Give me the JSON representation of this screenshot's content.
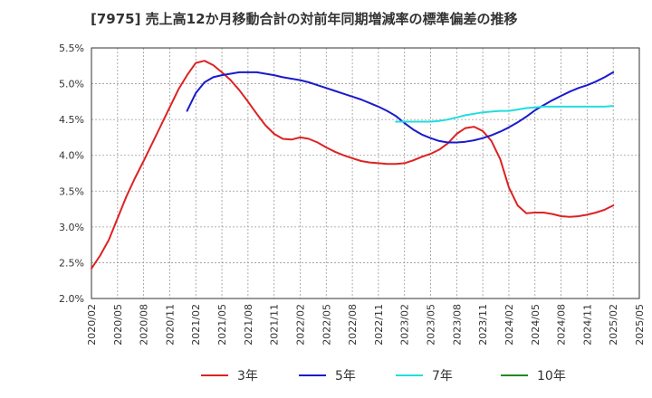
{
  "chart_data": {
    "type": "line",
    "title": "[7975]  売上高12か月移動合計の対前年同期増減率の標準偏差の推移",
    "xlabel": "",
    "ylabel": "",
    "x_ticks": [
      "2020/02",
      "2020/05",
      "2020/08",
      "2020/11",
      "2021/02",
      "2021/05",
      "2021/08",
      "2021/11",
      "2022/02",
      "2022/05",
      "2022/08",
      "2022/11",
      "2023/02",
      "2023/05",
      "2023/08",
      "2023/11",
      "2024/02",
      "2024/05",
      "2024/08",
      "2024/11",
      "2025/02",
      "2025/05"
    ],
    "y_ticks": [
      "2.0%",
      "2.5%",
      "3.0%",
      "3.5%",
      "4.0%",
      "4.5%",
      "5.0%",
      "5.5%"
    ],
    "ylim": [
      2.0,
      5.5
    ],
    "x_range": [
      "2020/02",
      "2025/05"
    ],
    "grid": true,
    "legend_position": "bottom",
    "series": [
      {
        "name": "3年",
        "color": "#dd2222",
        "points": [
          [
            "2020/02",
            2.42
          ],
          [
            "2020/03",
            2.6
          ],
          [
            "2020/04",
            2.82
          ],
          [
            "2020/05",
            3.12
          ],
          [
            "2020/06",
            3.42
          ],
          [
            "2020/07",
            3.68
          ],
          [
            "2020/08",
            3.92
          ],
          [
            "2020/09",
            4.17
          ],
          [
            "2020/10",
            4.42
          ],
          [
            "2020/11",
            4.67
          ],
          [
            "2020/12",
            4.92
          ],
          [
            "2021/01",
            5.12
          ],
          [
            "2021/02",
            5.29
          ],
          [
            "2021/03",
            5.32
          ],
          [
            "2021/04",
            5.26
          ],
          [
            "2021/05",
            5.16
          ],
          [
            "2021/06",
            5.05
          ],
          [
            "2021/07",
            4.91
          ],
          [
            "2021/08",
            4.75
          ],
          [
            "2021/09",
            4.58
          ],
          [
            "2021/10",
            4.42
          ],
          [
            "2021/11",
            4.3
          ],
          [
            "2021/12",
            4.23
          ],
          [
            "2022/01",
            4.22
          ],
          [
            "2022/02",
            4.25
          ],
          [
            "2022/03",
            4.23
          ],
          [
            "2022/04",
            4.18
          ],
          [
            "2022/05",
            4.11
          ],
          [
            "2022/06",
            4.05
          ],
          [
            "2022/07",
            4.0
          ],
          [
            "2022/08",
            3.96
          ],
          [
            "2022/09",
            3.92
          ],
          [
            "2022/10",
            3.9
          ],
          [
            "2022/11",
            3.89
          ],
          [
            "2022/12",
            3.88
          ],
          [
            "2023/01",
            3.88
          ],
          [
            "2023/02",
            3.89
          ],
          [
            "2023/03",
            3.93
          ],
          [
            "2023/04",
            3.98
          ],
          [
            "2023/05",
            4.02
          ],
          [
            "2023/06",
            4.08
          ],
          [
            "2023/07",
            4.17
          ],
          [
            "2023/08",
            4.3
          ],
          [
            "2023/09",
            4.38
          ],
          [
            "2023/10",
            4.4
          ],
          [
            "2023/11",
            4.34
          ],
          [
            "2023/12",
            4.2
          ],
          [
            "2024/01",
            3.95
          ],
          [
            "2024/02",
            3.55
          ],
          [
            "2024/03",
            3.3
          ],
          [
            "2024/04",
            3.19
          ],
          [
            "2024/05",
            3.2
          ],
          [
            "2024/06",
            3.2
          ],
          [
            "2024/07",
            3.18
          ],
          [
            "2024/08",
            3.15
          ],
          [
            "2024/09",
            3.14
          ],
          [
            "2024/10",
            3.15
          ],
          [
            "2024/11",
            3.17
          ],
          [
            "2024/12",
            3.2
          ],
          [
            "2025/01",
            3.24
          ],
          [
            "2025/02",
            3.3
          ]
        ]
      },
      {
        "name": "5年",
        "color": "#1a1acc",
        "points": [
          [
            "2021/01",
            4.62
          ],
          [
            "2021/02",
            4.87
          ],
          [
            "2021/03",
            5.02
          ],
          [
            "2021/04",
            5.09
          ],
          [
            "2021/05",
            5.12
          ],
          [
            "2021/06",
            5.14
          ],
          [
            "2021/07",
            5.16
          ],
          [
            "2021/08",
            5.16
          ],
          [
            "2021/09",
            5.16
          ],
          [
            "2021/10",
            5.14
          ],
          [
            "2021/11",
            5.12
          ],
          [
            "2021/12",
            5.09
          ],
          [
            "2022/01",
            5.07
          ],
          [
            "2022/02",
            5.05
          ],
          [
            "2022/03",
            5.02
          ],
          [
            "2022/04",
            4.98
          ],
          [
            "2022/05",
            4.94
          ],
          [
            "2022/06",
            4.9
          ],
          [
            "2022/07",
            4.86
          ],
          [
            "2022/08",
            4.82
          ],
          [
            "2022/09",
            4.78
          ],
          [
            "2022/10",
            4.73
          ],
          [
            "2022/11",
            4.68
          ],
          [
            "2022/12",
            4.62
          ],
          [
            "2023/01",
            4.55
          ],
          [
            "2023/02",
            4.45
          ],
          [
            "2023/03",
            4.36
          ],
          [
            "2023/04",
            4.29
          ],
          [
            "2023/05",
            4.24
          ],
          [
            "2023/06",
            4.2
          ],
          [
            "2023/07",
            4.18
          ],
          [
            "2023/08",
            4.18
          ],
          [
            "2023/09",
            4.19
          ],
          [
            "2023/10",
            4.21
          ],
          [
            "2023/11",
            4.24
          ],
          [
            "2023/12",
            4.28
          ],
          [
            "2024/01",
            4.33
          ],
          [
            "2024/02",
            4.39
          ],
          [
            "2024/03",
            4.46
          ],
          [
            "2024/04",
            4.54
          ],
          [
            "2024/05",
            4.63
          ],
          [
            "2024/06",
            4.7
          ],
          [
            "2024/07",
            4.77
          ],
          [
            "2024/08",
            4.83
          ],
          [
            "2024/09",
            4.89
          ],
          [
            "2024/10",
            4.94
          ],
          [
            "2024/11",
            4.98
          ],
          [
            "2024/12",
            5.03
          ],
          [
            "2025/01",
            5.09
          ],
          [
            "2025/02",
            5.16
          ]
        ]
      },
      {
        "name": "7年",
        "color": "#22dddd",
        "points": [
          [
            "2023/01",
            4.47
          ],
          [
            "2023/02",
            4.47
          ],
          [
            "2023/03",
            4.47
          ],
          [
            "2023/04",
            4.47
          ],
          [
            "2023/05",
            4.47
          ],
          [
            "2023/06",
            4.48
          ],
          [
            "2023/07",
            4.5
          ],
          [
            "2023/08",
            4.53
          ],
          [
            "2023/09",
            4.56
          ],
          [
            "2023/10",
            4.58
          ],
          [
            "2023/11",
            4.6
          ],
          [
            "2023/12",
            4.61
          ],
          [
            "2024/01",
            4.62
          ],
          [
            "2024/02",
            4.62
          ],
          [
            "2024/03",
            4.64
          ],
          [
            "2024/04",
            4.66
          ],
          [
            "2024/05",
            4.67
          ],
          [
            "2024/06",
            4.68
          ],
          [
            "2024/07",
            4.68
          ],
          [
            "2024/08",
            4.68
          ],
          [
            "2024/09",
            4.68
          ],
          [
            "2024/10",
            4.68
          ],
          [
            "2024/11",
            4.68
          ],
          [
            "2024/12",
            4.68
          ],
          [
            "2025/01",
            4.68
          ],
          [
            "2025/02",
            4.69
          ]
        ]
      },
      {
        "name": "10年",
        "color": "#228822",
        "points": []
      }
    ]
  }
}
